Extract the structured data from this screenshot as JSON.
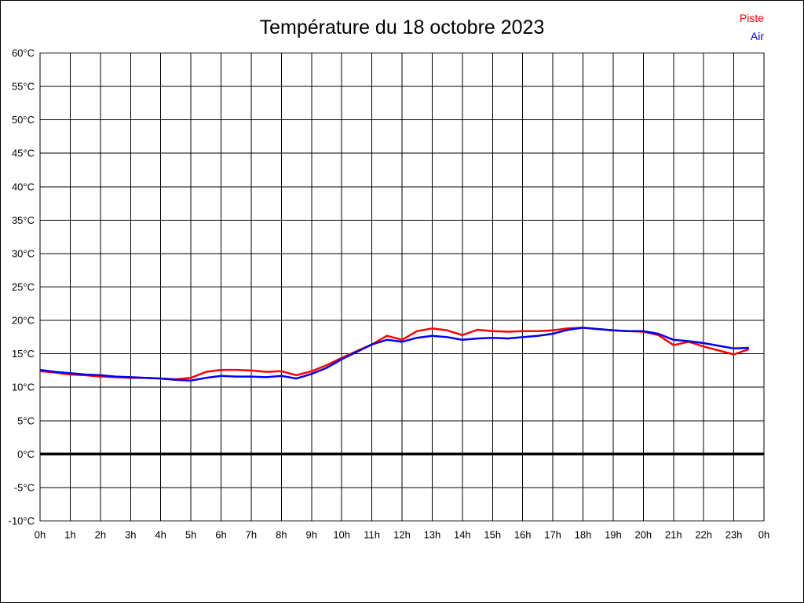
{
  "title": "Température du 18 octobre 2023",
  "legend": [
    {
      "label": "Piste",
      "color": "#ff0000"
    },
    {
      "label": "Air",
      "color": "#0000ee"
    }
  ],
  "chart_data": {
    "type": "line",
    "title": "Température du 18 octobre 2023",
    "xlabel": "",
    "ylabel": "",
    "xlim": [
      0,
      24
    ],
    "ylim": [
      -10,
      60
    ],
    "y_tick_step": 5,
    "grid": true,
    "grid_color": "#000000",
    "background": "#ffffff",
    "zero_line_bold": true,
    "legend_position": "top-right",
    "x_tick_labels": [
      "0h",
      "1h",
      "2h",
      "3h",
      "4h",
      "5h",
      "6h",
      "7h",
      "8h",
      "9h",
      "10h",
      "11h",
      "12h",
      "13h",
      "14h",
      "15h",
      "16h",
      "17h",
      "18h",
      "19h",
      "20h",
      "21h",
      "22h",
      "23h",
      "0h"
    ],
    "y_tick_labels": [
      "60°C",
      "55°C",
      "50°C",
      "45°C",
      "40°C",
      "35°C",
      "30°C",
      "25°C",
      "20°C",
      "15°C",
      "10°C",
      "5°C",
      "0°C",
      "-5°C",
      "-10°C"
    ],
    "x_unit": "hours",
    "x": [
      0,
      0.5,
      1,
      1.5,
      2,
      2.5,
      3,
      3.5,
      4,
      4.5,
      5,
      5.5,
      6,
      6.5,
      7,
      7.5,
      8,
      8.5,
      9,
      9.5,
      10,
      10.5,
      11,
      11.5,
      12,
      12.5,
      13,
      13.5,
      14,
      14.5,
      15,
      15.5,
      16,
      16.5,
      17,
      17.5,
      18,
      18.5,
      19,
      19.5,
      20,
      20.5,
      21,
      21.5,
      22,
      22.5,
      23,
      23.5
    ],
    "series": [
      {
        "name": "Piste",
        "color": "#ff0000",
        "values": [
          12.4,
          12.2,
          11.9,
          11.8,
          11.6,
          11.5,
          11.4,
          11.4,
          11.3,
          11.2,
          11.4,
          12.3,
          12.6,
          12.6,
          12.5,
          12.3,
          12.4,
          11.8,
          12.4,
          13.3,
          14.4,
          15.4,
          16.4,
          17.7,
          17.1,
          18.4,
          18.8,
          18.5,
          17.8,
          18.6,
          18.4,
          18.3,
          18.4,
          18.4,
          18.5,
          18.8,
          18.9,
          18.7,
          18.5,
          18.4,
          18.3,
          17.8,
          16.3,
          16.8,
          16.1,
          15.5,
          14.9,
          15.7
        ]
      },
      {
        "name": "Air",
        "color": "#0000ee",
        "values": [
          12.6,
          12.3,
          12.1,
          11.9,
          11.8,
          11.6,
          11.5,
          11.4,
          11.3,
          11.1,
          11.0,
          11.4,
          11.7,
          11.6,
          11.6,
          11.5,
          11.7,
          11.3,
          12.0,
          12.9,
          14.2,
          15.3,
          16.4,
          17.1,
          16.8,
          17.4,
          17.7,
          17.5,
          17.1,
          17.3,
          17.4,
          17.3,
          17.5,
          17.7,
          18.0,
          18.6,
          18.9,
          18.7,
          18.5,
          18.4,
          18.4,
          18.0,
          17.1,
          16.9,
          16.6,
          16.2,
          15.8,
          15.9
        ]
      }
    ]
  }
}
